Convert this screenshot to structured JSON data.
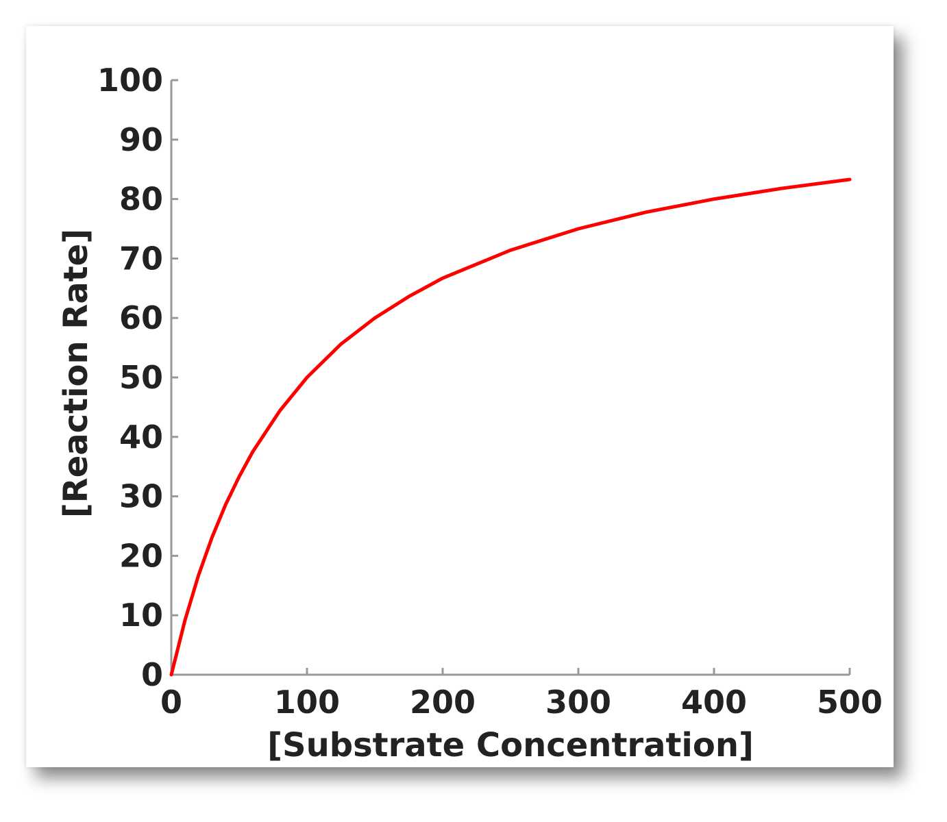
{
  "chart_data": {
    "type": "line",
    "title": "",
    "xlabel": "[Substrate Concentration]",
    "ylabel": "[Reaction Rate]",
    "xlim": [
      0,
      500
    ],
    "ylim": [
      0,
      100
    ],
    "xticks": [
      "0",
      "100",
      "200",
      "300",
      "400",
      "500"
    ],
    "yticks": [
      "0",
      "10",
      "20",
      "30",
      "40",
      "50",
      "60",
      "70",
      "80",
      "90",
      "100"
    ],
    "grid": false,
    "legend": "none",
    "series": [
      {
        "color": "#ff0000",
        "x": [
          0,
          10,
          20,
          30,
          40,
          50,
          60,
          80,
          100,
          125,
          150,
          175,
          200,
          250,
          300,
          350,
          400,
          450,
          500
        ],
        "y": [
          0,
          9.1,
          16.7,
          23.1,
          28.6,
          33.3,
          37.5,
          44.4,
          50.0,
          55.6,
          60.0,
          63.6,
          66.7,
          71.4,
          75.0,
          77.8,
          80.0,
          81.8,
          83.3
        ]
      }
    ]
  }
}
